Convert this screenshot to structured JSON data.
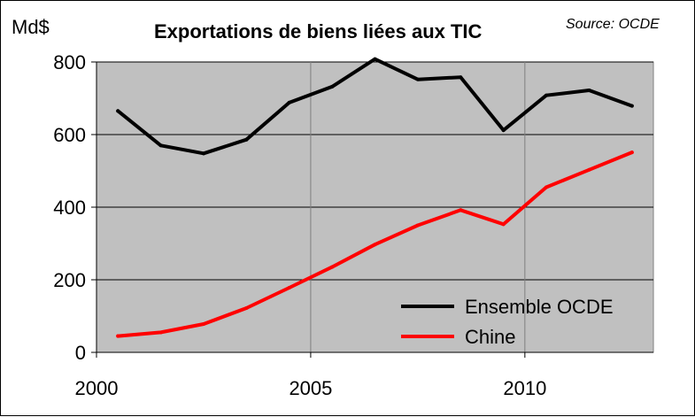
{
  "chart_data": {
    "type": "line",
    "title": "Exportations de biens liées aux TIC",
    "source": "Source: OCDE",
    "ylabel": "Md$",
    "ylim": [
      0,
      800
    ],
    "y_ticks": [
      "0",
      "200",
      "400",
      "600",
      "800"
    ],
    "x_ticks": [
      "2000",
      "2005",
      "2010"
    ],
    "grid": true,
    "legend_position": "bottom-right",
    "x": [
      2000,
      2001,
      2002,
      2003,
      2004,
      2005,
      2006,
      2007,
      2008,
      2009,
      2010,
      2011,
      2012
    ],
    "series": [
      {
        "name": "Ensemble OCDE",
        "color": "#000000",
        "values": [
          665,
          570,
          548,
          586,
          688,
          732,
          808,
          752,
          758,
          612,
          708,
          722,
          679
        ]
      },
      {
        "name": "Chine",
        "color": "#ff0000",
        "values": [
          45,
          55,
          78,
          122,
          178,
          235,
          297,
          350,
          392,
          353,
          455,
          503,
          551
        ]
      }
    ]
  }
}
